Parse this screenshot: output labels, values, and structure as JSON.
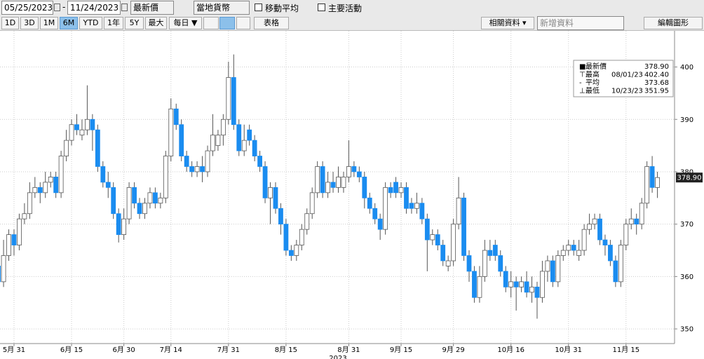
{
  "toolbar": {
    "start_date": "05/25/2023",
    "end_date": "11/24/2023",
    "field": "最新價",
    "currency": "當地貨幣",
    "moving_average": "移動平均",
    "key_events": "主要活動",
    "ranges": [
      "1D",
      "3D",
      "1M",
      "6M",
      "YTD",
      "1年",
      "5Y",
      "最大"
    ],
    "selected_range": "6M",
    "frequency": "每日 ▼",
    "table": "表格",
    "related": "相關資料 ▾",
    "add_data": "新增資料",
    "edit_chart": "編輯圖形"
  },
  "chart_data": {
    "type": "candlestick",
    "categories": [
      null,
      null,
      null,
      "5月 31",
      null,
      null,
      null,
      null,
      null,
      null,
      null,
      null,
      null,
      null,
      "6月 15",
      null,
      null,
      null,
      null,
      null,
      null,
      null,
      null,
      null,
      "6月 30",
      null,
      null,
      null,
      null,
      null,
      null,
      null,
      null,
      "7月 14",
      null,
      null,
      null,
      null,
      null,
      null,
      null,
      null,
      null,
      null,
      "7月 31",
      null,
      null,
      null,
      null,
      null,
      null,
      null,
      null,
      null,
      null,
      "8月 15",
      null,
      null,
      null,
      null,
      null,
      null,
      null,
      null,
      null,
      null,
      null,
      "8月 31",
      null,
      null,
      null,
      null,
      null,
      null,
      null,
      null,
      null,
      "9月 15",
      null,
      null,
      null,
      null,
      null,
      null,
      null,
      null,
      null,
      "9月 29",
      null,
      null,
      null,
      null,
      null,
      null,
      null,
      null,
      null,
      null,
      "10月 16",
      null,
      null,
      null,
      null,
      null,
      null,
      null,
      null,
      null,
      null,
      "10月 31",
      null,
      null,
      null,
      null,
      null,
      null,
      null,
      null,
      null,
      null,
      "11月 15",
      null,
      null,
      null,
      null,
      null,
      null
    ],
    "x_axis_year": "2023",
    "open": [
      362,
      359,
      364,
      368,
      366,
      371,
      372,
      376,
      377,
      376,
      378,
      379,
      376,
      383,
      386,
      389,
      387,
      388,
      390,
      388,
      381,
      378,
      377,
      372,
      368,
      371,
      377,
      374,
      372,
      374,
      376,
      374,
      375,
      383,
      392,
      389,
      383,
      381,
      380,
      381,
      380,
      384,
      385,
      387,
      390,
      398,
      389,
      384,
      388,
      386,
      383,
      381,
      375,
      377,
      373,
      370,
      365,
      364,
      366,
      369,
      372,
      376,
      381,
      376,
      378,
      377,
      377,
      379,
      381,
      380,
      379,
      375,
      373,
      371,
      369,
      377,
      378,
      376,
      377,
      374,
      373,
      374,
      371,
      367,
      368,
      366,
      362,
      363,
      370,
      375,
      364,
      361,
      356,
      360,
      365,
      366,
      364,
      361,
      358,
      359,
      358,
      359,
      357,
      358,
      356,
      361,
      363,
      359,
      364,
      365,
      366,
      364,
      365,
      369,
      370,
      371,
      367,
      366,
      363,
      359,
      366,
      370,
      371,
      370,
      374,
      381,
      377
    ],
    "high": [
      363,
      367,
      369,
      369,
      372,
      374,
      378,
      379,
      378,
      380,
      380,
      380,
      384,
      388,
      390,
      391,
      390,
      396.5,
      391,
      389,
      382,
      380,
      378,
      373,
      373,
      378,
      378,
      375,
      375,
      377,
      377,
      376,
      384,
      394,
      393,
      390,
      384,
      382,
      382,
      383,
      385,
      391,
      388,
      391,
      401,
      402.4,
      390,
      389,
      389,
      387,
      384,
      382,
      378,
      378,
      374,
      371,
      366,
      367,
      370,
      373,
      377,
      382,
      382,
      380,
      380,
      381,
      380,
      386,
      382,
      381,
      380,
      376,
      374,
      372,
      378,
      378,
      379,
      378,
      378,
      375,
      376,
      375,
      372,
      369,
      369,
      367,
      364,
      371,
      379,
      376,
      365,
      362,
      362,
      367,
      367,
      367,
      365,
      362,
      361,
      360,
      360,
      361,
      360,
      359,
      363,
      364,
      364,
      365,
      366,
      367,
      367,
      367,
      370,
      372,
      372,
      372,
      368,
      367,
      364,
      367,
      371,
      373,
      372,
      375,
      382,
      383,
      380
    ],
    "low": [
      357,
      358,
      363,
      364,
      365,
      370,
      371,
      375,
      374,
      375,
      377,
      375,
      375,
      382,
      385,
      387,
      386,
      387,
      384,
      380,
      377,
      375,
      371,
      366.5,
      367,
      370,
      373,
      371,
      371,
      373,
      373,
      373,
      374,
      382,
      388,
      382,
      380,
      379,
      379,
      378,
      379,
      383,
      384,
      385,
      389,
      388,
      383,
      383,
      385,
      382,
      380,
      374,
      370,
      372,
      368,
      364,
      363,
      363,
      365,
      368,
      371,
      375,
      375,
      375,
      376,
      376,
      376,
      378,
      379,
      378,
      373,
      372,
      370,
      367,
      368,
      375,
      375,
      375,
      372,
      372,
      372,
      370,
      361,
      366,
      365,
      362,
      361,
      362,
      369,
      363,
      359,
      355,
      355,
      359,
      363,
      363,
      360,
      357,
      356,
      353.5,
      357,
      356,
      355,
      351.95,
      355,
      359,
      358,
      358,
      363,
      364,
      364,
      363,
      364,
      368,
      369,
      366,
      364,
      362,
      358,
      358,
      365,
      369,
      368,
      369,
      373,
      376,
      375
    ],
    "close": [
      359,
      364,
      368,
      366,
      371,
      372,
      376,
      377,
      376,
      378,
      379,
      376,
      383,
      386,
      389,
      388,
      388,
      390,
      388,
      381,
      378,
      377,
      372,
      368,
      371,
      377,
      374,
      372,
      374,
      376,
      374,
      375,
      383,
      392,
      389,
      383,
      381,
      380,
      381,
      380,
      384,
      387,
      387,
      390,
      398,
      389,
      384,
      386,
      386,
      383,
      381,
      375,
      377,
      373,
      370,
      365,
      364,
      366,
      369,
      372,
      376,
      381,
      376,
      378,
      377,
      379,
      379,
      381,
      380,
      379,
      375,
      373,
      371,
      369,
      377,
      376,
      376,
      377,
      373,
      373,
      374,
      371,
      367,
      368,
      366,
      363,
      363,
      370,
      375,
      364,
      361,
      356,
      360,
      365,
      364,
      364,
      361,
      358,
      359,
      358,
      359,
      357,
      358,
      356,
      361,
      363,
      359,
      364,
      365,
      366,
      365,
      365,
      369,
      370,
      371,
      367,
      366,
      363,
      359,
      366,
      370,
      371,
      370,
      374,
      381,
      377,
      378.9
    ],
    "up_color": "#ffffff",
    "down_color": "#1a8cf0",
    "wick_color": "#555555",
    "ylim": [
      347.2,
      406.9
    ],
    "yticks": [
      350,
      360,
      370,
      380,
      390,
      400
    ],
    "grid": true,
    "last_price": {
      "value": 378.9,
      "label": "378.90"
    },
    "legend": [
      {
        "label": "最新價",
        "value": "378.90"
      },
      {
        "label": "最高",
        "date": "08/01/23",
        "value": "402.40"
      },
      {
        "label": "平均",
        "value": "373.68"
      },
      {
        "label": "最低",
        "date": "10/23/23",
        "value": "351.95"
      }
    ]
  }
}
